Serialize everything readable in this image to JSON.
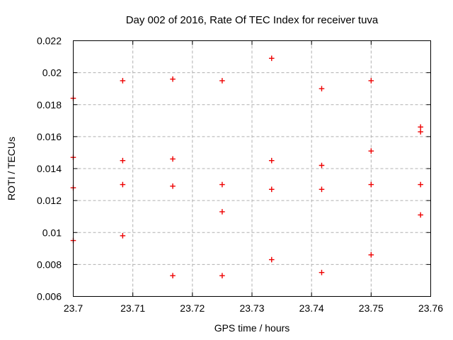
{
  "chart_data": {
    "type": "scatter",
    "title": "Day 002 of 2016, Rate Of TEC Index for receiver tuva",
    "xlabel": "GPS time / hours",
    "ylabel": "ROTI / TECUs",
    "xlim": [
      23.7,
      23.76
    ],
    "ylim": [
      0.006,
      0.022
    ],
    "grid": "dashed",
    "legend_position": "none",
    "x_ticks": {
      "values": [
        23.7,
        23.71,
        23.72,
        23.73,
        23.74,
        23.75,
        23.76
      ],
      "labels": [
        "23.7",
        "23.71",
        "23.72",
        "23.73",
        "23.74",
        "23.75",
        "23.76"
      ]
    },
    "y_ticks": {
      "values": [
        0.006,
        0.008,
        0.01,
        0.012,
        0.014,
        0.016,
        0.018,
        0.02,
        0.022
      ],
      "labels": [
        "0.006",
        "0.008",
        "0.01",
        "0.012",
        "0.014",
        "0.016",
        "0.018",
        "0.02",
        "0.022"
      ]
    },
    "marker": "plus",
    "marker_color": "#ee0000",
    "grid_color": "#b0b0b0",
    "frame_color": "#000000",
    "series": [
      {
        "name": "ROTI",
        "points": [
          [
            23.7,
            0.0184
          ],
          [
            23.7,
            0.0147
          ],
          [
            23.7,
            0.0128
          ],
          [
            23.7,
            0.0095
          ],
          [
            23.7083,
            0.0195
          ],
          [
            23.7083,
            0.0145
          ],
          [
            23.7083,
            0.013
          ],
          [
            23.7083,
            0.0098
          ],
          [
            23.7167,
            0.0196
          ],
          [
            23.7167,
            0.0146
          ],
          [
            23.7167,
            0.0129
          ],
          [
            23.7167,
            0.0073
          ],
          [
            23.725,
            0.0195
          ],
          [
            23.725,
            0.013
          ],
          [
            23.725,
            0.0113
          ],
          [
            23.725,
            0.0073
          ],
          [
            23.7333,
            0.0209
          ],
          [
            23.7333,
            0.0145
          ],
          [
            23.7333,
            0.0127
          ],
          [
            23.7333,
            0.0083
          ],
          [
            23.7417,
            0.019
          ],
          [
            23.7417,
            0.0142
          ],
          [
            23.7417,
            0.0127
          ],
          [
            23.7417,
            0.0075
          ],
          [
            23.75,
            0.0195
          ],
          [
            23.75,
            0.0151
          ],
          [
            23.75,
            0.013
          ],
          [
            23.75,
            0.0086
          ],
          [
            23.7583,
            0.0166
          ],
          [
            23.7583,
            0.0163
          ],
          [
            23.7583,
            0.013
          ],
          [
            23.7583,
            0.0111
          ]
        ]
      }
    ]
  }
}
